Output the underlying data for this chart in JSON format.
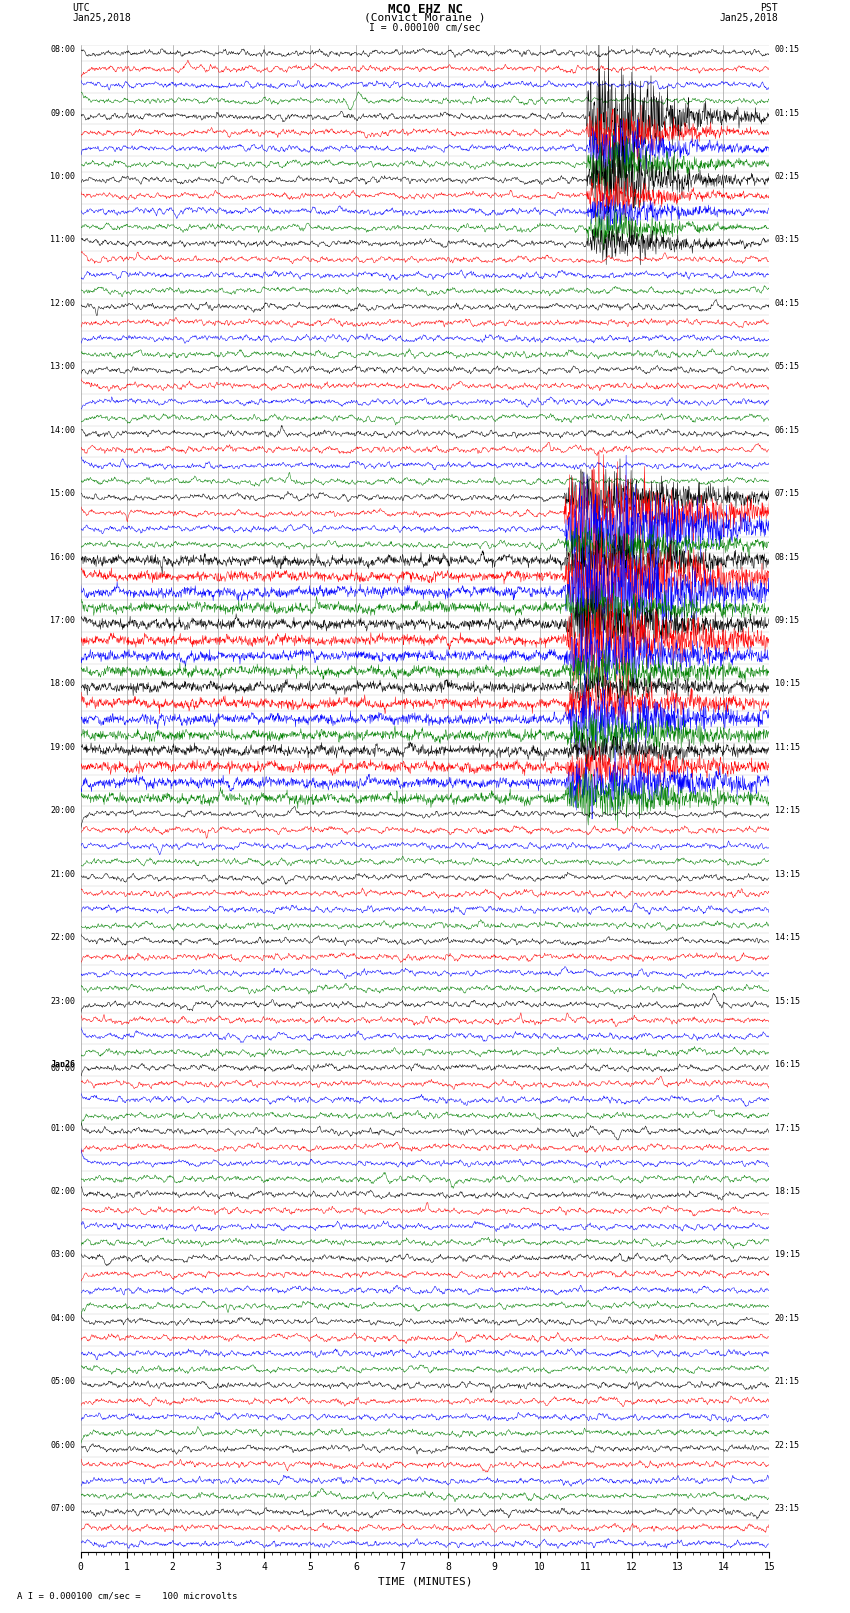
{
  "title_line1": "MCO EHZ NC",
  "title_line2": "(Convict Moraine )",
  "scale_label": "I = 0.000100 cm/sec",
  "utc_label_line1": "UTC",
  "utc_label_line2": "Jan25,2018",
  "pst_label_line1": "PST",
  "pst_label_line2": "Jan25,2018",
  "bottom_label": "A I = 0.000100 cm/sec =    100 microvolts",
  "xlabel": "TIME (MINUTES)",
  "bg_color": "#ffffff",
  "trace_colors": [
    "black",
    "red",
    "blue",
    "green"
  ],
  "n_rows": 95,
  "minutes_per_row": 15,
  "left_times": [
    "08:00",
    "",
    "",
    "",
    "09:00",
    "",
    "",
    "",
    "10:00",
    "",
    "",
    "",
    "11:00",
    "",
    "",
    "",
    "12:00",
    "",
    "",
    "",
    "13:00",
    "",
    "",
    "",
    "14:00",
    "",
    "",
    "",
    "15:00",
    "",
    "",
    "",
    "16:00",
    "",
    "",
    "",
    "17:00",
    "",
    "",
    "",
    "18:00",
    "",
    "",
    "",
    "19:00",
    "",
    "",
    "",
    "20:00",
    "",
    "",
    "",
    "21:00",
    "",
    "",
    "",
    "22:00",
    "",
    "",
    "",
    "23:00",
    "",
    "",
    "",
    "Jan26\n00:00",
    "",
    "",
    "",
    "01:00",
    "",
    "",
    "",
    "02:00",
    "",
    "",
    "",
    "03:00",
    "",
    "",
    "",
    "04:00",
    "",
    "",
    "",
    "05:00",
    "",
    "",
    "",
    "06:00",
    "",
    "",
    "",
    "07:00",
    "",
    ""
  ],
  "right_times": [
    "00:15",
    "",
    "",
    "",
    "01:15",
    "",
    "",
    "",
    "02:15",
    "",
    "",
    "",
    "03:15",
    "",
    "",
    "",
    "04:15",
    "",
    "",
    "",
    "05:15",
    "",
    "",
    "",
    "06:15",
    "",
    "",
    "",
    "07:15",
    "",
    "",
    "",
    "08:15",
    "",
    "",
    "",
    "09:15",
    "",
    "",
    "",
    "10:15",
    "",
    "",
    "",
    "11:15",
    "",
    "",
    "",
    "12:15",
    "",
    "",
    "",
    "13:15",
    "",
    "",
    "",
    "14:15",
    "",
    "",
    "",
    "15:15",
    "",
    "",
    "",
    "16:15",
    "",
    "",
    "",
    "17:15",
    "",
    "",
    "",
    "18:15",
    "",
    "",
    "",
    "19:15",
    "",
    "",
    "",
    "20:15",
    "",
    "",
    "",
    "21:15",
    "",
    "",
    "",
    "22:15",
    "",
    "",
    "",
    "23:15",
    "",
    ""
  ],
  "n_groups": 24,
  "traces_per_group": 4
}
